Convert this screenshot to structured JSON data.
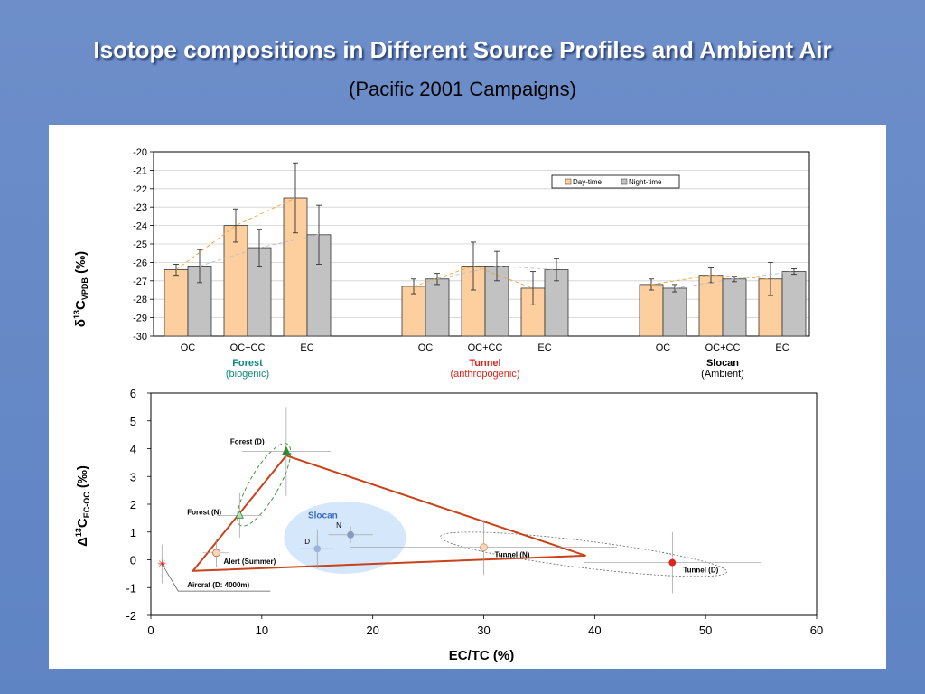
{
  "slide": {
    "title": "Isotope compositions in Different Source Profiles and Ambient Air",
    "subtitle": "(Pacific 2001 Campaigns)"
  },
  "chart_data": [
    {
      "type": "bar",
      "ylabel": "δ13CVPDB (‰)",
      "ylabel_parts": {
        "delta": "δ",
        "sup": "13",
        "c": "C",
        "sub": "VPDB",
        "unit": " (‰)"
      },
      "ylim": [
        -30,
        -20
      ],
      "yticks": [
        "-20",
        "-21",
        "-22",
        "-23",
        "-24",
        "-25",
        "-26",
        "-27",
        "-28",
        "-29",
        "-30"
      ],
      "grid": true,
      "legend_position": "top-right",
      "series": [
        {
          "name": "Day-time",
          "color": "#fdcf9f"
        },
        {
          "name": "Night-time",
          "color": "#c2c2c2"
        }
      ],
      "groups": [
        {
          "label": "Forest",
          "sublabel": "(biogenic)",
          "label_color": "#118a7e",
          "sublabel_color": "#118a7e",
          "categories": [
            {
              "name": "OC",
              "day": -26.4,
              "day_err": 0.3,
              "night": -26.2,
              "night_err": 0.9
            },
            {
              "name": "OC+CC",
              "day": -24.0,
              "day_err": 0.9,
              "night": -25.2,
              "night_err": 1.0
            },
            {
              "name": "EC",
              "day": -22.5,
              "day_err": 1.9,
              "night": -24.5,
              "night_err": 1.6
            }
          ]
        },
        {
          "label": "Tunnel",
          "sublabel": "(anthropogenic)",
          "label_color": "#e0241b",
          "sublabel_color": "#e0241b",
          "categories": [
            {
              "name": "OC",
              "day": -27.3,
              "day_err": 0.4,
              "night": -26.9,
              "night_err": 0.3
            },
            {
              "name": "OC+CC",
              "day": -26.2,
              "day_err": 1.3,
              "night": -26.2,
              "night_err": 0.8
            },
            {
              "name": "EC",
              "day": -27.4,
              "day_err": 0.9,
              "night": -26.4,
              "night_err": 0.6
            }
          ]
        },
        {
          "label": "Slocan",
          "sublabel": "(Ambient)",
          "label_color": "#000000",
          "sublabel_color": "#000000",
          "categories": [
            {
              "name": "OC",
              "day": -27.2,
              "day_err": 0.3,
              "night": -27.4,
              "night_err": 0.2
            },
            {
              "name": "OC+CC",
              "day": -26.7,
              "day_err": 0.4,
              "night": -26.9,
              "night_err": 0.15
            },
            {
              "name": "EC",
              "day": -26.9,
              "day_err": 0.9,
              "night": -26.5,
              "night_err": 0.15
            }
          ]
        }
      ]
    },
    {
      "type": "scatter",
      "xlabel": "EC/TC (%)",
      "ylabel": "Δ13C EC-OC (‰)",
      "ylabel_parts": {
        "delta": "Δ",
        "sup": "13",
        "c": "C",
        "sub": "EC-OC",
        "unit": " (‰)"
      },
      "xlim": [
        0,
        60
      ],
      "ylim": [
        -2,
        6
      ],
      "xticks": [
        "0",
        "10",
        "20",
        "30",
        "40",
        "50",
        "60"
      ],
      "yticks": [
        "6",
        "5",
        "4",
        "3",
        "2",
        "1",
        "0",
        "-1",
        "-2"
      ],
      "region_label": "Slocan",
      "triangle": [
        [
          12.2,
          3.75
        ],
        [
          3.8,
          -0.4
        ],
        [
          39.2,
          0.15
        ]
      ],
      "points": [
        {
          "label": "Forest (D)",
          "x": 12.2,
          "y": 3.9,
          "xerr": 4.0,
          "yerr": 1.6,
          "marker": "triangle",
          "color": "#2e8b2e"
        },
        {
          "label": "Forest (N)",
          "x": 8.0,
          "y": 1.6,
          "xerr": 2.0,
          "yerr": 0.8,
          "marker": "triangle-open",
          "color": "#2e8b2e"
        },
        {
          "label": "Alert (Summer)",
          "x": 5.9,
          "y": 0.25,
          "xerr": 1.2,
          "yerr": 0.5,
          "marker": "circle-open",
          "color": "#c8602a"
        },
        {
          "label": "Aircraf (D: 4000m)",
          "x": 1.0,
          "y": -0.15,
          "xerr": 0.3,
          "yerr": 0.7,
          "marker": "star",
          "color": "#e0241b"
        },
        {
          "label": "Tunnel (N)",
          "x": 30.0,
          "y": 0.45,
          "xerr": 12.0,
          "yerr": 1.0,
          "marker": "circle-open",
          "color": "#e09070"
        },
        {
          "label": "Tunnel (D)",
          "x": 47.0,
          "y": -0.1,
          "xerr": 8.0,
          "yerr": 1.1,
          "marker": "circle",
          "color": "#e0241b"
        },
        {
          "label": "D",
          "x": 15.0,
          "y": 0.4,
          "xerr": 1.5,
          "yerr": 0.7,
          "marker": "circle",
          "color": "#9fb3d9"
        },
        {
          "label": "N",
          "x": 18.0,
          "y": 0.9,
          "xerr": 2.0,
          "yerr": 0.3,
          "marker": "circle",
          "color": "#8a9ab8"
        }
      ]
    }
  ]
}
